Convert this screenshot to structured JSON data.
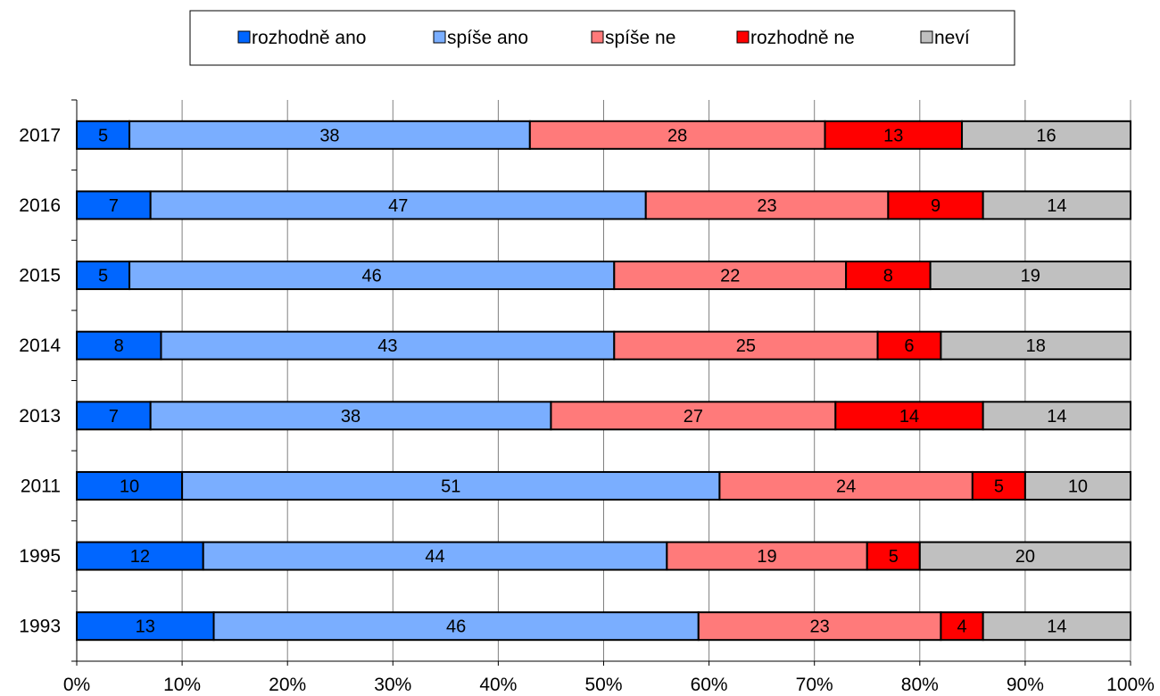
{
  "chart_data": {
    "type": "bar",
    "orientation": "horizontal",
    "stacked": "percent",
    "categories": [
      "2017",
      "2016",
      "2015",
      "2014",
      "2013",
      "2011",
      "1995",
      "1993"
    ],
    "series": [
      {
        "name": "rozhodně ano",
        "color": "#0066ff",
        "values": [
          5,
          7,
          5,
          8,
          7,
          10,
          12,
          13
        ]
      },
      {
        "name": "spíše ano",
        "color": "#7aaeff",
        "values": [
          38,
          47,
          46,
          43,
          38,
          51,
          44,
          46
        ]
      },
      {
        "name": "spíše ne",
        "color": "#ff7a7a",
        "values": [
          28,
          23,
          22,
          25,
          27,
          24,
          19,
          23
        ]
      },
      {
        "name": "rozhodně ne",
        "color": "#ff0000",
        "values": [
          13,
          9,
          8,
          6,
          14,
          5,
          5,
          4
        ]
      },
      {
        "name": "neví",
        "color": "#c0c0c0",
        "values": [
          16,
          14,
          19,
          18,
          14,
          10,
          20,
          14
        ]
      }
    ],
    "xlim": [
      0,
      100
    ],
    "x_ticks": [
      "0%",
      "10%",
      "20%",
      "30%",
      "40%",
      "50%",
      "60%",
      "70%",
      "80%",
      "90%",
      "100%"
    ],
    "grid": "vertical",
    "legend_position": "top"
  }
}
